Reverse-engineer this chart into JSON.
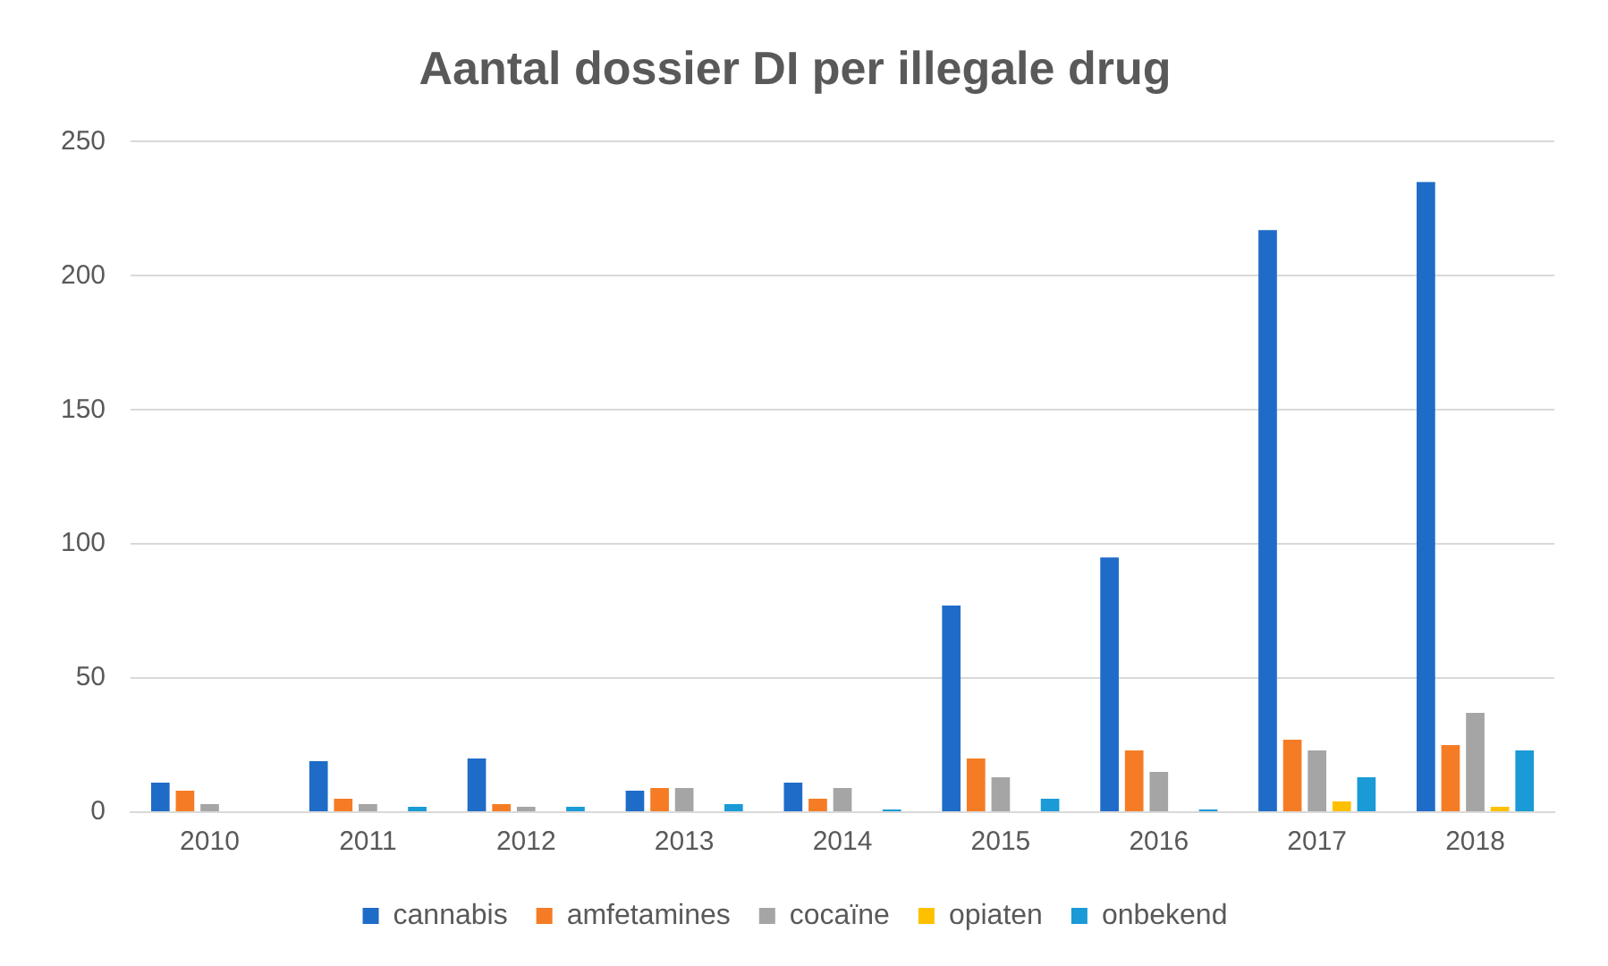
{
  "chart_data": {
    "type": "bar",
    "title": "Aantal dossier DI per illegale drug",
    "categories": [
      "2010",
      "2011",
      "2012",
      "2013",
      "2014",
      "2015",
      "2016",
      "2017",
      "2018"
    ],
    "series": [
      {
        "name": "cannabis",
        "color": "#1f6cc8",
        "values": [
          11,
          19,
          20,
          8,
          11,
          77,
          95,
          217,
          235
        ]
      },
      {
        "name": "amfetamines",
        "color": "#f57c25",
        "values": [
          8,
          5,
          3,
          9,
          5,
          20,
          23,
          27,
          25
        ]
      },
      {
        "name": "cocaïne",
        "color": "#a5a5a5",
        "values": [
          3,
          3,
          2,
          9,
          9,
          13,
          15,
          23,
          37
        ]
      },
      {
        "name": "opiaten",
        "color": "#ffc000",
        "values": [
          0,
          0,
          0,
          0,
          0,
          0,
          0,
          4,
          2
        ]
      },
      {
        "name": "onbekend",
        "color": "#1a9ad6",
        "values": [
          0,
          2,
          2,
          3,
          1,
          5,
          1,
          13,
          23
        ]
      }
    ],
    "ylim": [
      0,
      250
    ],
    "yticks": [
      0,
      50,
      100,
      150,
      200,
      250
    ],
    "grid": "y",
    "legend": "bottom"
  }
}
